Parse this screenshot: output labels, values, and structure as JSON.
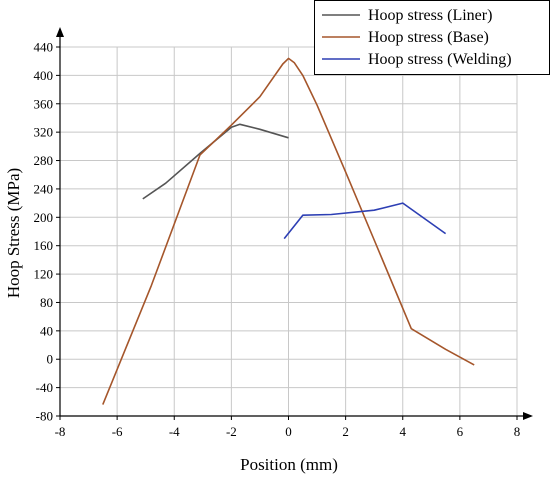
{
  "chart_data": {
    "type": "line",
    "xlabel": "Position (mm)",
    "ylabel": "Hoop Stress (MPa)",
    "xlim": [
      -8,
      8
    ],
    "ylim": [
      -80,
      440
    ],
    "xticks": [
      -8,
      -6,
      -4,
      -2,
      0,
      2,
      4,
      6,
      8
    ],
    "yticks": [
      -80,
      -40,
      0,
      40,
      80,
      120,
      160,
      200,
      240,
      280,
      320,
      360,
      400,
      440
    ],
    "grid": true,
    "legend_position": "top-right",
    "series": [
      {
        "name": "Hoop stress (Liner)",
        "color": "#555555",
        "x": [
          -5.1,
          -4.3,
          -3.1,
          -2.0,
          -1.7,
          -1.0,
          0.0
        ],
        "y": [
          226,
          248,
          290,
          327,
          331,
          324,
          312
        ]
      },
      {
        "name": "Hoop stress (Base)",
        "color": "#a5562b",
        "x": [
          -6.5,
          -4.8,
          -3.1,
          -2.0,
          -1.0,
          -0.2,
          0.0,
          0.2,
          0.5,
          1.0,
          2.0,
          3.0,
          4.3,
          5.5,
          6.5
        ],
        "y": [
          -64,
          104,
          288,
          330,
          370,
          416,
          424,
          418,
          400,
          358,
          264,
          168,
          43,
          14,
          -8
        ]
      },
      {
        "name": "Hoop stress (Welding)",
        "color": "#2d3fb4",
        "x": [
          -0.15,
          0.5,
          1.5,
          3.0,
          4.0,
          5.5
        ],
        "y": [
          170,
          203,
          204,
          210,
          220,
          177
        ]
      }
    ]
  }
}
